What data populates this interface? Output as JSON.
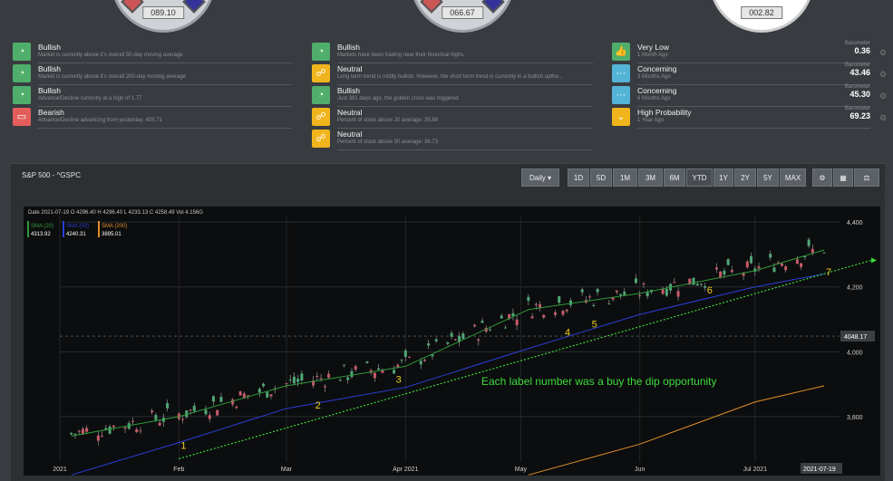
{
  "gauges": [
    "089.10",
    "066.67",
    "002.82"
  ],
  "signals_left": [
    {
      "title": "Bullish",
      "desc": "Market is currently above it's overall 50-day moving average",
      "color": "#4fae6b",
      "icon": "speedometer-icon"
    },
    {
      "title": "Bullish",
      "desc": "Market is currently above it's overall 200-day moving average",
      "color": "#4fae6b",
      "icon": "speedometer-icon"
    },
    {
      "title": "Bullish",
      "desc": "Advance/Decline currently at a high of 1.77",
      "color": "#4fae6b",
      "icon": "speedometer-icon"
    },
    {
      "title": "Bearish",
      "desc": "Advance/Decline advancing from yesterday: 405.71",
      "color": "#e35d5d",
      "icon": "chat-icon"
    }
  ],
  "signals_mid": [
    {
      "title": "Bullish",
      "desc": "Markets have been trading near their historical highs.",
      "color": "#4fae6b",
      "icon": "speedometer-icon"
    },
    {
      "title": "Neutral",
      "desc": "Long term trend is mildly bullish. However, the short term trend is currently in a bullish upthe...",
      "color": "#f0b41c",
      "icon": "signal-icon"
    },
    {
      "title": "Bullish",
      "desc": "Just 381 days ago, the golden cross was triggered",
      "color": "#4fae6b",
      "icon": "speedometer-icon"
    },
    {
      "title": "Neutral",
      "desc": "Percent of stock above 20 average: 35.88",
      "color": "#f0b41c",
      "icon": "signal-icon"
    },
    {
      "title": "Neutral",
      "desc": "Percent of stock above 50 average: 36.73",
      "color": "#f0b41c",
      "icon": "signal-icon"
    }
  ],
  "signals_right": [
    {
      "title": "Very Low",
      "desc": "1 Month Ago",
      "baro_label": "Barometer",
      "baro": "0.36",
      "color": "#4fae6b",
      "icon": "thumbs-up-icon"
    },
    {
      "title": "Concerning",
      "desc": "3 Months Ago",
      "baro_label": "Barometer",
      "baro": "43.46",
      "color": "#54b4d6",
      "icon": "dots-icon"
    },
    {
      "title": "Concerning",
      "desc": "6 Months Ago",
      "baro_label": "Barometer",
      "baro": "45.30",
      "color": "#54b4d6",
      "icon": "dots-icon"
    },
    {
      "title": "High Probability",
      "desc": "1 Year Ago",
      "baro_label": "Barometer",
      "baro": "69.23",
      "color": "#f0b41c",
      "icon": "chevron-down-icon"
    }
  ],
  "chart_panel": {
    "title": "S&P 500 - ^GSPC",
    "interval": "Daily",
    "ranges": [
      "1D",
      "5D",
      "1M",
      "3M",
      "6M",
      "YTD",
      "1Y",
      "2Y",
      "5Y",
      "MAX"
    ],
    "active_range": "YTD"
  },
  "ohlc": {
    "date_label": "Date",
    "date": "2021-07-19",
    "o_label": "O",
    "o": "4296.40",
    "h_label": "H",
    "h": "4296.40",
    "l_label": "L",
    "l": "4233.13",
    "c_label": "C",
    "c": "4258.49",
    "vol_label": "Vol",
    "vol": "4.156G"
  },
  "legend": [
    {
      "name": "SMA (20)",
      "value": "4313.92",
      "color": "#2e9a3a"
    },
    {
      "name": "SMA (50)",
      "value": "4240.31",
      "color": "#2a3fd8"
    },
    {
      "name": "SMA (200)",
      "value": "3895.01",
      "color": "#e0902a"
    }
  ],
  "annotation": "Each label number was a buy the dip opportunity",
  "price_marker": "4048.17",
  "date_marker": "2021-07-19",
  "chart_data": {
    "type": "line",
    "title": "S&P 500 - ^GSPC",
    "x_ticks": [
      "2021",
      "Feb",
      "Mar",
      "Apr 2021",
      "May",
      "Jun",
      "Jul 2021"
    ],
    "y_ticks": [
      3800,
      4000,
      4200,
      4400
    ],
    "ylim": [
      3660,
      4420
    ],
    "series": [
      {
        "name": "SMA (20)",
        "color": "#2e9a3a",
        "x": [
          "2021-01-04",
          "2021-02-01",
          "2021-03-01",
          "2021-04-01",
          "2021-05-03",
          "2021-06-01",
          "2021-07-01",
          "2021-07-19"
        ],
        "values": [
          3740,
          3800,
          3895,
          3955,
          4130,
          4180,
          4250,
          4313.92
        ]
      },
      {
        "name": "SMA (50)",
        "color": "#2a3fd8",
        "x": [
          "2021-01-04",
          "2021-02-01",
          "2021-03-01",
          "2021-04-01",
          "2021-05-03",
          "2021-06-01",
          "2021-07-01",
          "2021-07-19"
        ],
        "values": [
          3620,
          3720,
          3825,
          3890,
          4010,
          4115,
          4200,
          4240.31
        ]
      },
      {
        "name": "SMA (200)",
        "color": "#e0902a",
        "x": [
          "2021-05-03",
          "2021-06-01",
          "2021-07-01",
          "2021-07-19"
        ],
        "values": [
          3620,
          3715,
          3845,
          3895.01
        ]
      }
    ],
    "buy_points": [
      {
        "label": "1",
        "x": "2021-02-01",
        "y": 3700
      },
      {
        "label": "2",
        "x": "2021-03-08",
        "y": 3825
      },
      {
        "label": "3",
        "x": "2021-03-29",
        "y": 3905
      },
      {
        "label": "4",
        "x": "2021-05-12",
        "y": 4050
      },
      {
        "label": "5",
        "x": "2021-05-19",
        "y": 4075
      },
      {
        "label": "6",
        "x": "2021-06-18",
        "y": 4180
      },
      {
        "label": "7",
        "x": "2021-07-19",
        "y": 4235
      }
    ]
  }
}
